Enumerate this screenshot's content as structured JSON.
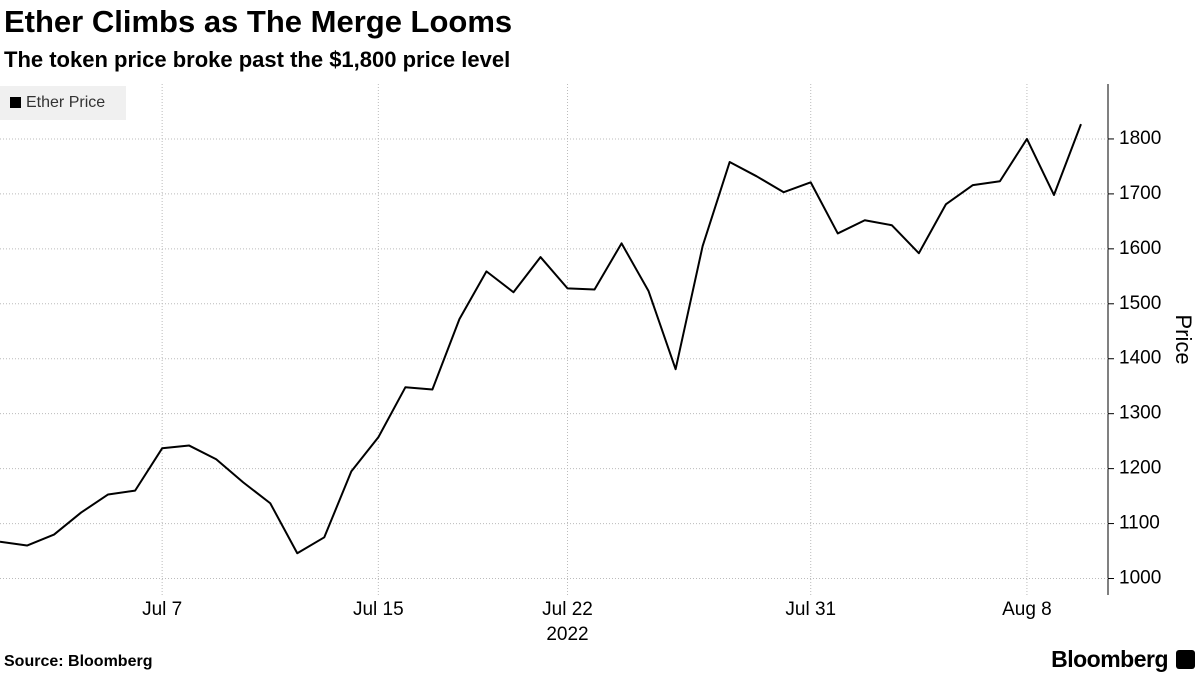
{
  "chart_data": {
    "type": "line",
    "title": "Ether Climbs as The Merge Looms",
    "subtitle": "The token price broke past the $1,800 price level",
    "ylabel": "Price",
    "xlabel": "2022",
    "source": "Source: Bloomberg",
    "brand": "Bloomberg",
    "x": [
      "2022-07-01",
      "2022-07-02",
      "2022-07-03",
      "2022-07-04",
      "2022-07-05",
      "2022-07-06",
      "2022-07-07",
      "2022-07-08",
      "2022-07-09",
      "2022-07-10",
      "2022-07-11",
      "2022-07-12",
      "2022-07-13",
      "2022-07-14",
      "2022-07-15",
      "2022-07-16",
      "2022-07-17",
      "2022-07-18",
      "2022-07-19",
      "2022-07-20",
      "2022-07-21",
      "2022-07-22",
      "2022-07-23",
      "2022-07-24",
      "2022-07-25",
      "2022-07-26",
      "2022-07-27",
      "2022-07-28",
      "2022-07-29",
      "2022-07-30",
      "2022-07-31",
      "2022-08-01",
      "2022-08-02",
      "2022-08-03",
      "2022-08-04",
      "2022-08-05",
      "2022-08-06",
      "2022-08-07",
      "2022-08-08",
      "2022-08-09",
      "2022-08-10"
    ],
    "series": [
      {
        "name": "Ether Price",
        "color": "#000000",
        "values": [
          1067,
          1060,
          1080,
          1120,
          1153,
          1160,
          1237,
          1242,
          1217,
          1175,
          1137,
          1046,
          1075,
          1195,
          1257,
          1348,
          1344,
          1472,
          1559,
          1521,
          1585,
          1528,
          1526,
          1610,
          1523,
          1381,
          1605,
          1758,
          1732,
          1703,
          1721,
          1628,
          1652,
          1643,
          1592,
          1681,
          1716,
          1723,
          1800,
          1698,
          1827
        ]
      }
    ],
    "xlim": [
      "2022-07-01",
      "2022-08-11"
    ],
    "xticks": [
      {
        "value": "2022-07-07",
        "label": "Jul 7"
      },
      {
        "value": "2022-07-15",
        "label": "Jul 15"
      },
      {
        "value": "2022-07-22",
        "label": "Jul 22"
      },
      {
        "value": "2022-07-31",
        "label": "Jul 31"
      },
      {
        "value": "2022-08-08",
        "label": "Aug 8"
      }
    ],
    "ylim": [
      970,
      1900
    ],
    "yticks": [
      1000,
      1100,
      1200,
      1300,
      1400,
      1500,
      1600,
      1700,
      1800
    ],
    "grid": true,
    "legend": "top-left"
  }
}
